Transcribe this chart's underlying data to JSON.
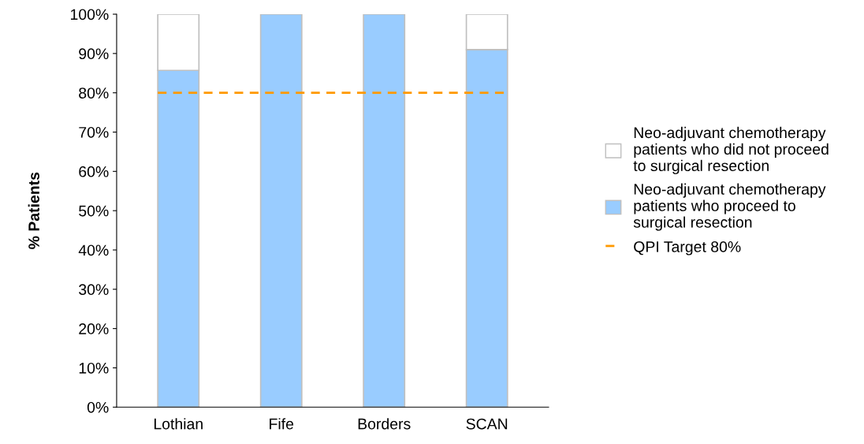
{
  "chart_data": {
    "type": "bar",
    "stacked": true,
    "ylabel": "% Patients",
    "categories": [
      "Lothian",
      "Fife",
      "Borders",
      "SCAN"
    ],
    "series": [
      {
        "name": "Neo-adjuvant chemotherapy patients who proceed to surgical resection",
        "color": "#99ccff",
        "values": [
          85.7,
          100,
          100,
          91
        ]
      },
      {
        "name": "Neo-adjuvant chemotherapy patients who did not proceed to surgical resection",
        "color": "#ffffff",
        "values": [
          14.3,
          0,
          0,
          9
        ]
      }
    ],
    "ylim": [
      0,
      100
    ],
    "yticks": [
      {
        "value": 0,
        "label": "0%"
      },
      {
        "value": 10,
        "label": "10%"
      },
      {
        "value": 20,
        "label": "20%"
      },
      {
        "value": 30,
        "label": "30%"
      },
      {
        "value": 40,
        "label": "40%"
      },
      {
        "value": 50,
        "label": "50%"
      },
      {
        "value": 60,
        "label": "60%"
      },
      {
        "value": 70,
        "label": "70%"
      },
      {
        "value": 80,
        "label": "80%"
      },
      {
        "value": 90,
        "label": "90%"
      },
      {
        "value": 100,
        "label": "100%"
      }
    ],
    "ref_lines": [
      {
        "axis": "y",
        "value": 80,
        "label": "QPI Target 80%",
        "color": "#ff9900",
        "line_style": "dashed"
      }
    ],
    "legend": "right",
    "grid": false
  }
}
